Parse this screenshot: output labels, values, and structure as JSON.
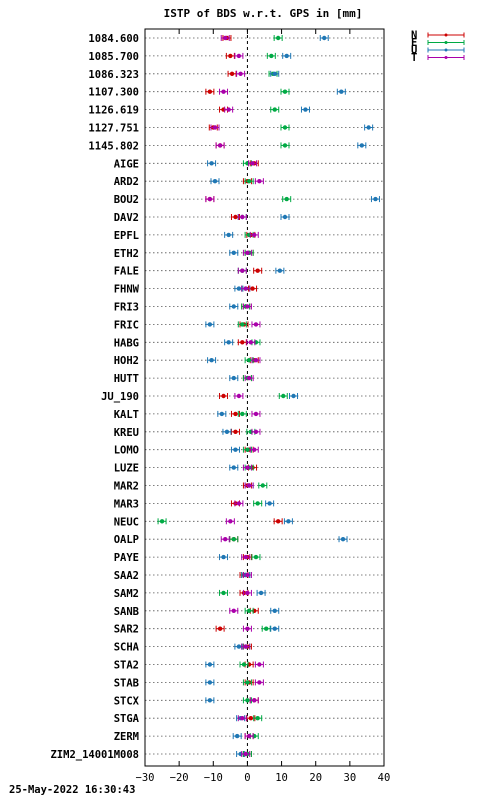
{
  "footer": {
    "timestamp": "25-May-2022 16:30:43"
  },
  "chart_data": {
    "type": "scatter",
    "title": "ISTP of BDS w.r.t. GPS in [mm]",
    "xlim": [
      -30,
      40
    ],
    "x_ticks": [
      -30,
      -20,
      -10,
      0,
      10,
      20,
      30,
      40
    ],
    "y_grid": "dotted",
    "zero_line": "dashed",
    "legend_position": "top-right",
    "categories": [
      "1084.600",
      "1085.700",
      "1086.323",
      "1107.300",
      "1126.619",
      "1127.751",
      "1145.802",
      "AIGE",
      "ARD2",
      "BOU2",
      "DAV2",
      "EPFL",
      "ETH2",
      "FALE",
      "FHNW",
      "FRI3",
      "FRIC",
      "HABG",
      "HOH2",
      "HUTT",
      "JU_190",
      "KALT",
      "KREU",
      "LOMO",
      "LUZE",
      "MAR2",
      "MAR3",
      "NEUC",
      "OALP",
      "PAYE",
      "SAA2",
      "SAM2",
      "SANB",
      "SAR2",
      "SCHA",
      "STA2",
      "STAB",
      "STCX",
      "STGA",
      "ZERM",
      "ZIM2_14001M008"
    ],
    "series": [
      {
        "name": "N",
        "color": "#cc0000",
        "values": [
          -6,
          -5,
          -4.5,
          -11,
          -7,
          -10,
          -8,
          2,
          0,
          -11,
          -3.5,
          1,
          0.5,
          3,
          1.5,
          -0.5,
          -1,
          -1.5,
          2,
          0,
          -7,
          -3.5,
          -3.5,
          0.5,
          1.5,
          0,
          -3.5,
          9,
          -4,
          0,
          -1,
          -1,
          2,
          -8,
          0,
          0.5,
          0.5,
          2,
          1,
          0.5,
          0
        ]
      },
      {
        "name": "E",
        "color": "#00aa44",
        "values": [
          9,
          7,
          7.5,
          11,
          8,
          11,
          11,
          0,
          0.5,
          11.5,
          -1.5,
          0.5,
          0.5,
          -1.5,
          -0.5,
          -0.5,
          -1.5,
          2.5,
          0.5,
          0,
          10.5,
          -1.5,
          1,
          0,
          0.5,
          4.5,
          3,
          -25,
          -4,
          2.5,
          -0.5,
          -7,
          0.5,
          5.5,
          -0.5,
          -1,
          0,
          0,
          3,
          2,
          0
        ]
      },
      {
        "name": "U",
        "color": "#1f77b4",
        "values": [
          22.5,
          11.5,
          8,
          27.5,
          17,
          35.5,
          33.5,
          -10.5,
          -9.5,
          37.5,
          11,
          -5.5,
          -4,
          9.5,
          -2.5,
          -4,
          -11,
          -5.5,
          -10.5,
          -4,
          13.5,
          -7.5,
          -6,
          -3.5,
          -4,
          0.5,
          6.5,
          12,
          28,
          -7,
          -0.5,
          4,
          8,
          8,
          -2.5,
          -11,
          -11,
          -11,
          -2,
          -3,
          -2
        ]
      },
      {
        "name": "T",
        "color": "#aa00aa",
        "values": [
          -6.5,
          -2.5,
          -2,
          -7,
          -5.5,
          -9.5,
          -8,
          1.5,
          3.5,
          -11,
          -1.5,
          2,
          0,
          -1.5,
          -0.5,
          0,
          2.5,
          1,
          2.5,
          0.5,
          -2.5,
          2.5,
          2.5,
          2,
          0,
          0.5,
          -2.5,
          -5,
          -6.5,
          -0.5,
          0,
          0,
          -4,
          0,
          -0.5,
          3.5,
          3.5,
          2,
          -1.5,
          0.5,
          -0.5
        ]
      }
    ]
  }
}
